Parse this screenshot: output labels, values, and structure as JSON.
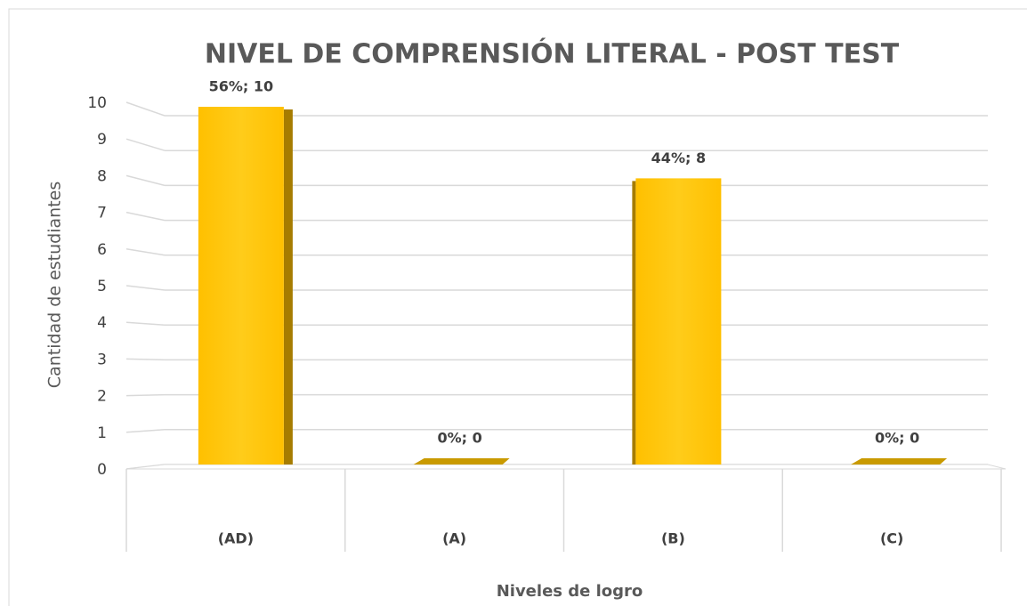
{
  "chart_data": {
    "type": "bar",
    "title": "NIVEL DE COMPRENSIÓN LITERAL - POST TEST",
    "x_label": "Niveles de logro",
    "y_label": "Cantidad de estudiantes",
    "categories": [
      "(AD)",
      "(A)",
      "(B)",
      "(C)"
    ],
    "values": [
      10,
      0,
      8,
      0
    ],
    "value_labels": [
      "56%; 10",
      "0%; 0",
      "44%; 8",
      "0%; 0"
    ],
    "color": "#ffc000",
    "ylim": [
      0,
      10
    ],
    "yticks": [
      0,
      1,
      2,
      3,
      4,
      5,
      6,
      7,
      8,
      9,
      10
    ],
    "grid": true
  }
}
